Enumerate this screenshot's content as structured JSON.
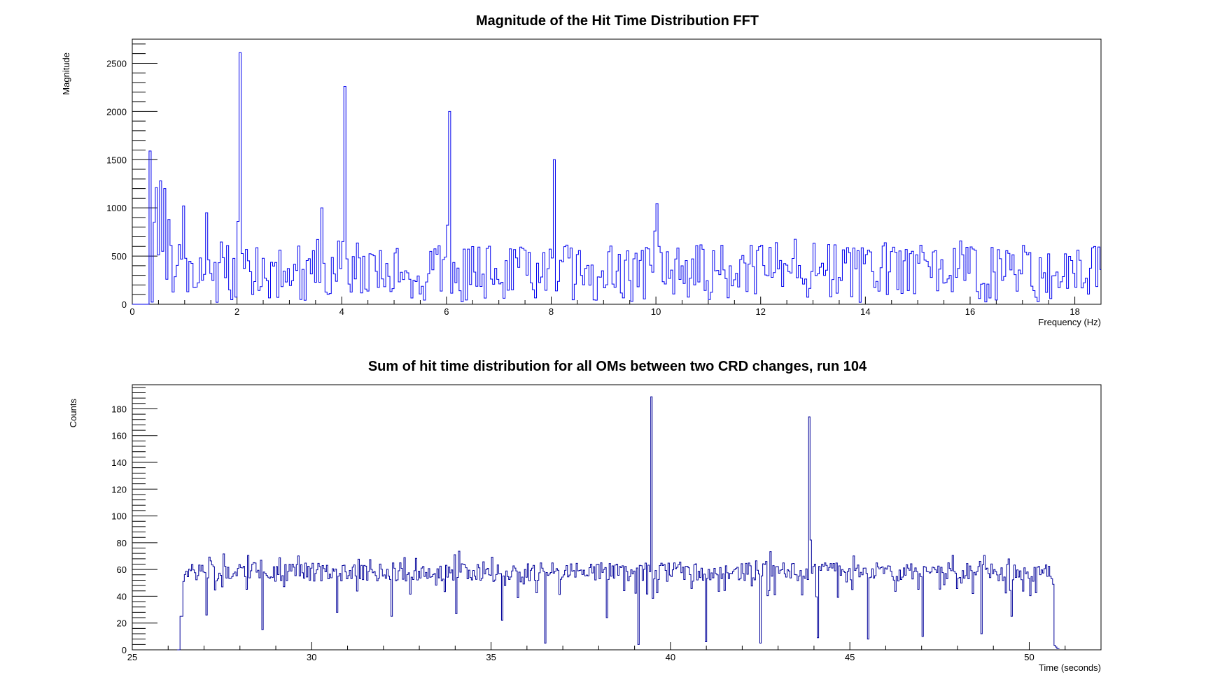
{
  "chart_data": [
    {
      "type": "line",
      "title": "Magnitude of the Hit Time Distribution FFT",
      "xlabel": "Frequency (Hz)",
      "ylabel": "Magnitude",
      "xlim": [
        0,
        18.5
      ],
      "ylim": [
        0,
        2750
      ],
      "x_major_ticks": [
        0,
        2,
        4,
        6,
        8,
        10,
        12,
        14,
        16,
        18
      ],
      "x_tick_labels": [
        "0",
        "2",
        "4",
        "6",
        "8",
        "10",
        "12",
        "14",
        "16",
        "18"
      ],
      "y_major_ticks": [
        0,
        500,
        1000,
        1500,
        2000,
        2500
      ],
      "y_tick_labels": [
        "0",
        "500",
        "1000",
        "1500",
        "2000",
        "2500"
      ],
      "series": [
        {
          "color": "#0000ee",
          "style": "step",
          "peaks_x": [
            0.3,
            0.38,
            0.45,
            0.53,
            0.6,
            0.68,
            0.95,
            1.38,
            2.0,
            2.04,
            3.6,
            4.0,
            4.04,
            6.0,
            6.04,
            8.0,
            8.04,
            9.95,
            10.0,
            10.05
          ],
          "peaks_y": [
            1590,
            850,
            1210,
            1280,
            1200,
            880,
            1020,
            950,
            860,
            2610,
            1000,
            650,
            2260,
            820,
            2000,
            480,
            1500,
            760,
            1045,
            600
          ],
          "baseline_mean": 360
        }
      ]
    },
    {
      "type": "line",
      "title": "Sum of hit time distribution for all OMs between two CRD changes, run 104",
      "xlabel": "Time (seconds)",
      "ylabel": "Counts",
      "xlim": [
        25,
        52
      ],
      "ylim": [
        0,
        198
      ],
      "x_major_ticks": [
        25,
        30,
        35,
        40,
        45,
        50
      ],
      "x_tick_labels": [
        "25",
        "30",
        "35",
        "40",
        "45",
        "50"
      ],
      "y_major_ticks": [
        0,
        20,
        40,
        60,
        80,
        100,
        120,
        140,
        160,
        180
      ],
      "y_tick_labels": [
        "0",
        "20",
        "40",
        "60",
        "80",
        "100",
        "120",
        "140",
        "160",
        "180"
      ],
      "series": [
        {
          "color": "#000099",
          "style": "step",
          "start_x": 26.25,
          "end_x": 50.6,
          "tail_end_x": 50.8,
          "baseline_mean": 58,
          "spikes_x": [
            39.45,
            43.85,
            43.9
          ],
          "spikes_y": [
            189,
            174,
            82
          ],
          "dips_x": [
            27.05,
            28.6,
            30.7,
            32.2,
            34.0,
            35.3,
            36.5,
            38.2,
            39.1,
            40.95,
            42.5,
            44.1,
            45.5,
            47.0,
            48.65,
            49.5
          ],
          "dips_y": [
            26,
            15,
            28,
            25,
            27,
            22,
            5,
            24,
            4,
            6,
            5,
            9,
            8,
            10,
            12,
            25
          ]
        }
      ]
    }
  ]
}
